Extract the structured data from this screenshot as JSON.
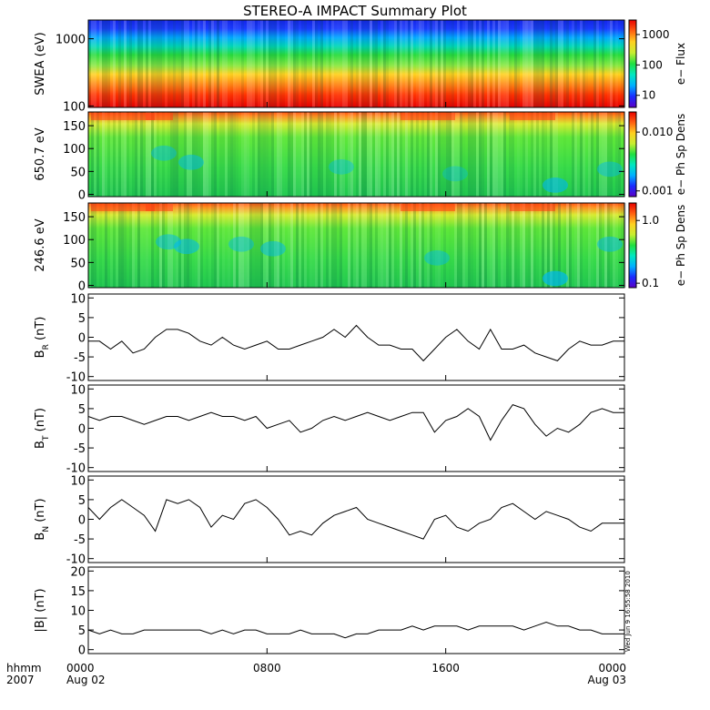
{
  "title": "STEREO-A IMPACT Summary Plot",
  "timestamp": "Wed Jun 9 16:55:58 2010",
  "colors": {
    "spectrum": [
      "#5a00c8",
      "#1a2cff",
      "#00b0ff",
      "#00e8c0",
      "#20e040",
      "#c8ee30",
      "#ffd020",
      "#ff6010",
      "#e80000"
    ],
    "trace": "#000000",
    "axes": "#000000"
  },
  "chart_data": [
    {
      "type": "heatmap",
      "ylabel": "SWEA (eV)",
      "yscale": "log",
      "ylim": [
        95,
        1900
      ],
      "yticks": [
        {
          "v": 100,
          "label": "100"
        },
        {
          "v": 1000,
          "label": "1000"
        }
      ],
      "colorbar": {
        "label": "e− Flux",
        "scale": "log",
        "range": [
          4,
          3000
        ],
        "ticks": [
          {
            "v": 10,
            "label": "10"
          },
          {
            "v": 100,
            "label": "100"
          },
          {
            "v": 1000,
            "label": "1000"
          }
        ]
      }
    },
    {
      "type": "heatmap",
      "ylabel": "650.7 eV",
      "yscale": "linear",
      "ylim": [
        -5,
        180
      ],
      "yticks": [
        {
          "v": 0,
          "label": "0"
        },
        {
          "v": 50,
          "label": "50"
        },
        {
          "v": 100,
          "label": "100"
        },
        {
          "v": 150,
          "label": "150"
        }
      ],
      "colorbar": {
        "label": "e− Ph Sp Dens",
        "scale": "log",
        "range": [
          0.0008,
          0.022
        ],
        "ticks": [
          {
            "v": 0.001,
            "label": "0.001"
          },
          {
            "v": 0.01,
            "label": "0.010"
          }
        ]
      }
    },
    {
      "type": "heatmap",
      "ylabel": "246.6 eV",
      "yscale": "linear",
      "ylim": [
        -5,
        180
      ],
      "yticks": [
        {
          "v": 0,
          "label": "0"
        },
        {
          "v": 50,
          "label": "50"
        },
        {
          "v": 100,
          "label": "100"
        },
        {
          "v": 150,
          "label": "150"
        }
      ],
      "colorbar": {
        "label": "e− Ph Sp Dens",
        "scale": "log",
        "range": [
          0.085,
          1.9
        ],
        "ticks": [
          {
            "v": 0.1,
            "label": "0.1"
          },
          {
            "v": 1,
            "label": "1.0"
          }
        ]
      }
    },
    {
      "type": "line",
      "ylabel": "B",
      "ylabel_sub": "R",
      "ylabel_unit": "(nT)",
      "ylim": [
        -11,
        11
      ],
      "yticks": [
        -10,
        -5,
        0,
        5,
        10
      ],
      "x": [
        0,
        0.5,
        1,
        1.5,
        2,
        2.5,
        3,
        3.5,
        4,
        4.5,
        5,
        5.5,
        6,
        6.5,
        7,
        7.5,
        8,
        8.5,
        9,
        9.5,
        10,
        10.5,
        11,
        11.5,
        12,
        12.5,
        13,
        13.5,
        14,
        14.5,
        15,
        15.5,
        16,
        16.5,
        17,
        17.5,
        18,
        18.5,
        19,
        19.5,
        20,
        20.5,
        21,
        21.5,
        22,
        22.5,
        23,
        23.5,
        24
      ],
      "y": [
        -1,
        -1,
        -3,
        -1,
        -4,
        -3,
        0,
        2,
        2,
        1,
        -1,
        -2,
        0,
        -2,
        -3,
        -2,
        -1,
        -3,
        -3,
        -2,
        -1,
        0,
        2,
        0,
        3,
        0,
        -2,
        -2,
        -3,
        -3,
        -6,
        -3,
        0,
        2,
        -1,
        -3,
        2,
        -3,
        -3,
        -2,
        -4,
        -5,
        -6,
        -3,
        -1,
        -2,
        -2,
        -1,
        -1
      ]
    },
    {
      "type": "line",
      "ylabel": "B",
      "ylabel_sub": "T",
      "ylabel_unit": "(nT)",
      "ylim": [
        -11,
        11
      ],
      "yticks": [
        -10,
        -5,
        0,
        5,
        10
      ],
      "x": [
        0,
        0.5,
        1,
        1.5,
        2,
        2.5,
        3,
        3.5,
        4,
        4.5,
        5,
        5.5,
        6,
        6.5,
        7,
        7.5,
        8,
        8.5,
        9,
        9.5,
        10,
        10.5,
        11,
        11.5,
        12,
        12.5,
        13,
        13.5,
        14,
        14.5,
        15,
        15.5,
        16,
        16.5,
        17,
        17.5,
        18,
        18.5,
        19,
        19.5,
        20,
        20.5,
        21,
        21.5,
        22,
        22.5,
        23,
        23.5,
        24
      ],
      "y": [
        3,
        2,
        3,
        3,
        2,
        1,
        2,
        3,
        3,
        2,
        3,
        4,
        3,
        3,
        2,
        3,
        0,
        1,
        2,
        -1,
        0,
        2,
        3,
        2,
        3,
        4,
        3,
        2,
        3,
        4,
        4,
        -1,
        2,
        3,
        5,
        3,
        -3,
        2,
        6,
        5,
        1,
        -2,
        0,
        -1,
        1,
        4,
        5,
        4,
        4
      ]
    },
    {
      "type": "line",
      "ylabel": "B",
      "ylabel_sub": "N",
      "ylabel_unit": "(nT)",
      "ylim": [
        -11,
        11
      ],
      "yticks": [
        -10,
        -5,
        0,
        5,
        10
      ],
      "x": [
        0,
        0.5,
        1,
        1.5,
        2,
        2.5,
        3,
        3.5,
        4,
        4.5,
        5,
        5.5,
        6,
        6.5,
        7,
        7.5,
        8,
        8.5,
        9,
        9.5,
        10,
        10.5,
        11,
        11.5,
        12,
        12.5,
        13,
        13.5,
        14,
        14.5,
        15,
        15.5,
        16,
        16.5,
        17,
        17.5,
        18,
        18.5,
        19,
        19.5,
        20,
        20.5,
        21,
        21.5,
        22,
        22.5,
        23,
        23.5,
        24
      ],
      "y": [
        3,
        0,
        3,
        5,
        3,
        1,
        -3,
        5,
        4,
        5,
        3,
        -2,
        1,
        0,
        4,
        5,
        3,
        0,
        -4,
        -3,
        -4,
        -1,
        1,
        2,
        3,
        0,
        -1,
        -2,
        -3,
        -4,
        -5,
        0,
        1,
        -2,
        -3,
        -1,
        0,
        3,
        4,
        2,
        0,
        2,
        1,
        0,
        -2,
        -3,
        -1,
        -1,
        -1
      ]
    },
    {
      "type": "line",
      "ylabel": "|B| (nT)",
      "ylim": [
        -1,
        21
      ],
      "yticks": [
        0,
        5,
        10,
        15,
        20
      ],
      "x": [
        0,
        0.5,
        1,
        1.5,
        2,
        2.5,
        3,
        3.5,
        4,
        4.5,
        5,
        5.5,
        6,
        6.5,
        7,
        7.5,
        8,
        8.5,
        9,
        9.5,
        10,
        10.5,
        11,
        11.5,
        12,
        12.5,
        13,
        13.5,
        14,
        14.5,
        15,
        15.5,
        16,
        16.5,
        17,
        17.5,
        18,
        18.5,
        19,
        19.5,
        20,
        20.5,
        21,
        21.5,
        22,
        22.5,
        23,
        23.5,
        24
      ],
      "y": [
        5,
        4,
        5,
        4,
        4,
        5,
        5,
        5,
        5,
        5,
        5,
        4,
        5,
        4,
        5,
        5,
        4,
        4,
        4,
        5,
        4,
        4,
        4,
        3,
        4,
        4,
        5,
        5,
        5,
        6,
        5,
        6,
        6,
        6,
        5,
        6,
        6,
        6,
        6,
        5,
        6,
        7,
        6,
        6,
        5,
        5,
        4,
        4,
        4
      ]
    }
  ],
  "xaxis": {
    "corner_label_1": "hhmm",
    "corner_label_2": "2007",
    "range": [
      0,
      24
    ],
    "ticks": [
      {
        "v": 0,
        "label": "0000",
        "sub": "Aug 02"
      },
      {
        "v": 8,
        "label": "0800",
        "sub": ""
      },
      {
        "v": 16,
        "label": "1600",
        "sub": ""
      },
      {
        "v": 24,
        "label": "0000",
        "sub": "Aug 03"
      }
    ]
  }
}
